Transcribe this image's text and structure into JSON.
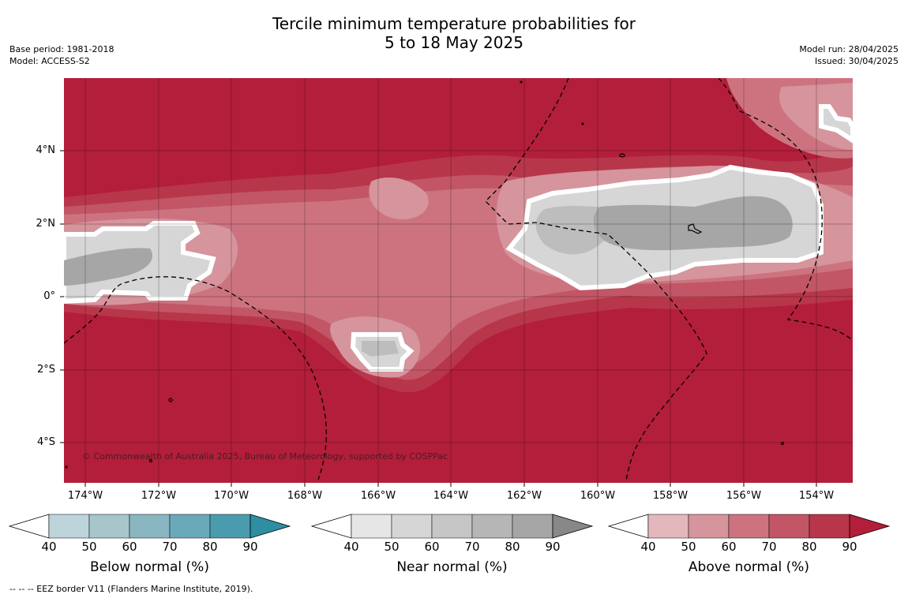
{
  "header": {
    "title_line1": "Tercile minimum temperature probabilities for",
    "title_line2": "5 to 18 May 2025",
    "base_period": "Base period: 1981-2018",
    "model": "Model: ACCESS-S2",
    "model_run": "Model run: 28/04/2025",
    "issued": "Issued: 30/04/2025"
  },
  "map": {
    "copyright": "© Commonwealth of Australia 2025, Bureau of Meteorology, supported by COSPPac",
    "lat_labels": [
      "4°N",
      "2°N",
      "0°",
      "2°S",
      "4°S"
    ],
    "lon_labels": [
      "174°W",
      "172°W",
      "170°W",
      "168°W",
      "166°W",
      "164°W",
      "162°W",
      "160°W",
      "158°W",
      "156°W",
      "154°W"
    ],
    "background_color": "#b31e3a"
  },
  "legends": [
    {
      "title": "Below normal (%)",
      "ticks": [
        "40",
        "50",
        "60",
        "70",
        "80",
        "90"
      ],
      "colors": [
        "#ffffff",
        "#bcd4da",
        "#a6c6cc",
        "#8ab6c2",
        "#6aa9b9",
        "#4a9bad",
        "#2e8ea2"
      ]
    },
    {
      "title": "Near normal (%)",
      "ticks": [
        "40",
        "50",
        "60",
        "70",
        "80",
        "90"
      ],
      "colors": [
        "#ffffff",
        "#e6e6e6",
        "#d6d6d6",
        "#c6c6c6",
        "#b6b6b6",
        "#a6a6a6",
        "#888888"
      ]
    },
    {
      "title": "Above normal (%)",
      "ticks": [
        "40",
        "50",
        "60",
        "70",
        "80",
        "90"
      ],
      "colors": [
        "#ffffff",
        "#e2b8bd",
        "#d6949c",
        "#cd7380",
        "#c25666",
        "#b8364a",
        "#b31e3a"
      ]
    }
  ],
  "footnote": "--  --  -- EEZ border V11 (Flanders Marine Institute, 2019)."
}
